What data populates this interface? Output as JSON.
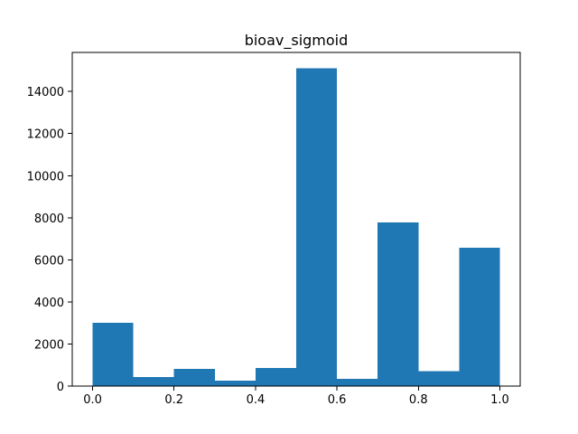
{
  "chart_data": {
    "type": "bar",
    "title": "bioav_sigmoid",
    "xlabel": "",
    "ylabel": "",
    "bins": [
      {
        "x0": 0.0,
        "x1": 0.1,
        "count": 3000
      },
      {
        "x0": 0.1,
        "x1": 0.2,
        "count": 430
      },
      {
        "x0": 0.2,
        "x1": 0.3,
        "count": 820
      },
      {
        "x0": 0.3,
        "x1": 0.4,
        "count": 260
      },
      {
        "x0": 0.4,
        "x1": 0.5,
        "count": 860
      },
      {
        "x0": 0.5,
        "x1": 0.6,
        "count": 15100
      },
      {
        "x0": 0.6,
        "x1": 0.7,
        "count": 350
      },
      {
        "x0": 0.7,
        "x1": 0.8,
        "count": 7780
      },
      {
        "x0": 0.8,
        "x1": 0.9,
        "count": 700
      },
      {
        "x0": 0.9,
        "x1": 1.0,
        "count": 6580
      }
    ],
    "xlim": [
      -0.05,
      1.05
    ],
    "ylim": [
      0,
      15855
    ],
    "x_ticks": [
      0.0,
      0.2,
      0.4,
      0.6,
      0.8,
      1.0
    ],
    "x_tick_labels": [
      "0.0",
      "0.2",
      "0.4",
      "0.6",
      "0.8",
      "1.0"
    ],
    "y_ticks": [
      0,
      2000,
      4000,
      6000,
      8000,
      10000,
      12000,
      14000
    ],
    "y_tick_labels": [
      "0",
      "2000",
      "4000",
      "6000",
      "8000",
      "10000",
      "12000",
      "14000"
    ],
    "bar_color": "#1f77b4",
    "grid": false,
    "legend": "none"
  }
}
